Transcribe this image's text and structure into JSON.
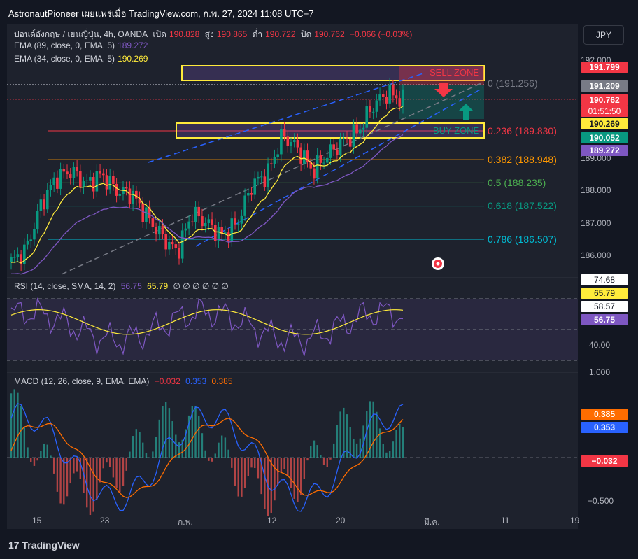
{
  "header": {
    "title": "AstronautPioneer เผยแพร่เมื่อ TradingView.com, ก.พ. 27, 2024 11:08 UTC+7"
  },
  "currency": "JPY",
  "legend": {
    "symbol": "ปอนด์อังกฤษ / เยนญี่ปุ่น, 4h, OANDA",
    "open_label": "เปิด",
    "open": "190.828",
    "high_label": "สูง",
    "high": "190.865",
    "low_label": "ต่ำ",
    "low": "190.722",
    "close_label": "ปิด",
    "close": "190.762",
    "change": "−0.066 (−0.03%)",
    "ema89": "EMA (89, close, 0, EMA, 5)",
    "ema89_val": "189.272",
    "ema34": "EMA (34, close, 0, EMA, 5)",
    "ema34_val": "190.269"
  },
  "price_axis": {
    "ticks": [
      "192.000",
      "189.000",
      "188.000",
      "187.000",
      "186.000"
    ]
  },
  "price_tags": {
    "t1": "191.799",
    "t2": "191.209",
    "t3": "190.762",
    "t3_time": "01:51:50",
    "t4": "190.269",
    "t5": "190.052",
    "t6": "189.272"
  },
  "fib": [
    {
      "label": "0 (191.256)",
      "color": "#787b86"
    },
    {
      "label": "0.236 (189.830)",
      "color": "#f23645"
    },
    {
      "label": "0.382 (188.948)",
      "color": "#ff9800"
    },
    {
      "label": "0.5 (188.235)",
      "color": "#4caf50"
    },
    {
      "label": "0.618 (187.522)",
      "color": "#089981"
    },
    {
      "label": "0.786 (186.507)",
      "color": "#00bcd4"
    }
  ],
  "zones": {
    "sell": "SELL ZONE",
    "buy": "BUY ZONE"
  },
  "rsi": {
    "label": "RSI (14, close, SMA, 14, 2)",
    "v1": "56.75",
    "v2": "65.79",
    "extra": "∅ ∅ ∅ ∅ ∅ ∅",
    "axis": [
      "74.68",
      "65.79",
      "58.57",
      "56.75",
      "40.00"
    ]
  },
  "macd": {
    "label": "MACD (12, 26, close, 9, EMA, EMA)",
    "hist": "−0.032",
    "macd": "0.353",
    "signal": "0.385",
    "axis": [
      "1.000",
      "0.385",
      "0.353",
      "−0.032",
      "−0.500"
    ]
  },
  "x_axis": [
    "15",
    "23",
    "ก.พ.",
    "12",
    "20",
    "มี.ค.",
    "11",
    "19"
  ],
  "chart_data": {
    "type": "line",
    "title": "ปอนด์อังกฤษ / เยนญี่ปุ่น, 4h, OANDA",
    "x_ticks": [
      "15",
      "23",
      "ก.พ.",
      "12",
      "20",
      "มี.ค.",
      "11",
      "19"
    ],
    "price_range": [
      185.5,
      192.3
    ],
    "fib_levels": [
      191.256,
      189.83,
      188.948,
      188.235,
      187.522,
      186.507
    ],
    "approx_close_series": [
      185.8,
      186.2,
      187.6,
      188.4,
      188.6,
      188.2,
      188.5,
      188.0,
      187.9,
      187.2,
      186.6,
      186.1,
      187.3,
      187.0,
      186.6,
      187.0,
      188.2,
      188.5,
      189.7,
      189.3,
      188.6,
      189.1,
      189.5,
      189.8,
      190.6,
      191.0,
      190.76
    ],
    "ohlc_last": {
      "open": 190.828,
      "high": 190.865,
      "low": 190.722,
      "close": 190.762
    },
    "ema34_last": 190.269,
    "ema89_last": 189.272,
    "rsi_last": 56.75,
    "rsi_sma_last": 65.79,
    "macd_last": 0.353,
    "signal_last": 0.385,
    "hist_last": -0.032
  }
}
